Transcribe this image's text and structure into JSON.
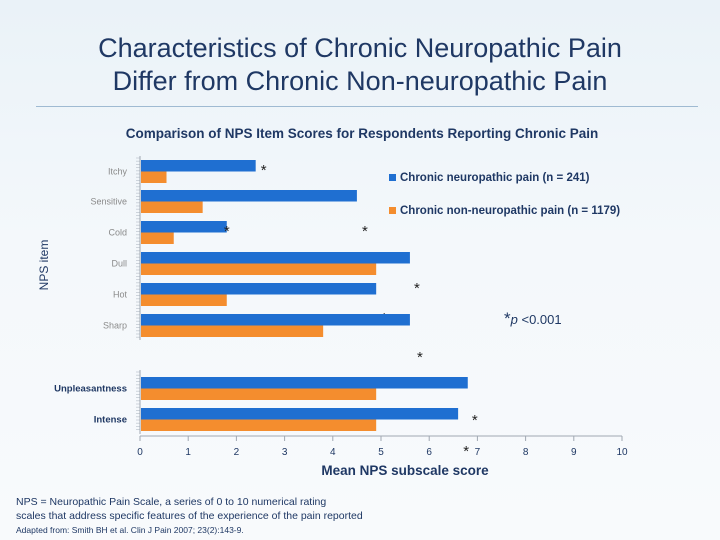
{
  "slide": {
    "title_line1": "Characteristics of Chronic Neuropathic Pain",
    "title_line2": "Differ from Chronic Non-neuropathic Pain",
    "footnote_line1": "NPS = Neuropathic Pain Scale, a series of 0 to 10 numerical rating",
    "footnote_line2": "scales that address specific features of the experience of the pain reported",
    "source": "Adapted from: Smith BH et al. Clin J Pain 2007; 23(2):143-9."
  },
  "colors": {
    "neuropathic": "#1f6fd1",
    "non_neuropathic": "#f48d2e",
    "axis": "#a0a8b2",
    "text_dark": "#1f3864",
    "label_gray": "#8a8a8a"
  },
  "chart_data": {
    "type": "bar",
    "orientation": "horizontal",
    "title": "Comparison of NPS Item Scores for Respondents Reporting Chronic Pain",
    "xlabel": "Mean NPS subscale score",
    "ylabel": "NPS item",
    "xlim": [
      0,
      10
    ],
    "xticks": [
      0,
      1,
      2,
      3,
      4,
      5,
      6,
      7,
      8,
      9,
      10
    ],
    "groups": [
      {
        "name": "items",
        "categories": [
          "Itchy",
          "Sensitive",
          "Cold",
          "Dull",
          "Hot",
          "Sharp"
        ]
      },
      {
        "name": "summary",
        "categories": [
          "Unpleasantness",
          "Intense"
        ]
      }
    ],
    "categories": [
      "Itchy",
      "Sensitive",
      "Cold",
      "Dull",
      "Hot",
      "Sharp",
      "Unpleasantness",
      "Intense"
    ],
    "series": [
      {
        "name": "Chronic neuropathic pain (n = 241)",
        "values": [
          2.4,
          4.5,
          1.8,
          5.6,
          4.9,
          5.6,
          6.8,
          6.6
        ]
      },
      {
        "name": "Chronic non-neuropathic pain (n = 1179)",
        "values": [
          0.55,
          1.3,
          0.7,
          4.9,
          1.8,
          3.8,
          4.9,
          4.9
        ]
      }
    ],
    "significance_marker": "*",
    "significance_note_symbol": "*",
    "significance_note_p": "p",
    "significance_note_value": " <0.001",
    "legend_position": "top-right"
  }
}
